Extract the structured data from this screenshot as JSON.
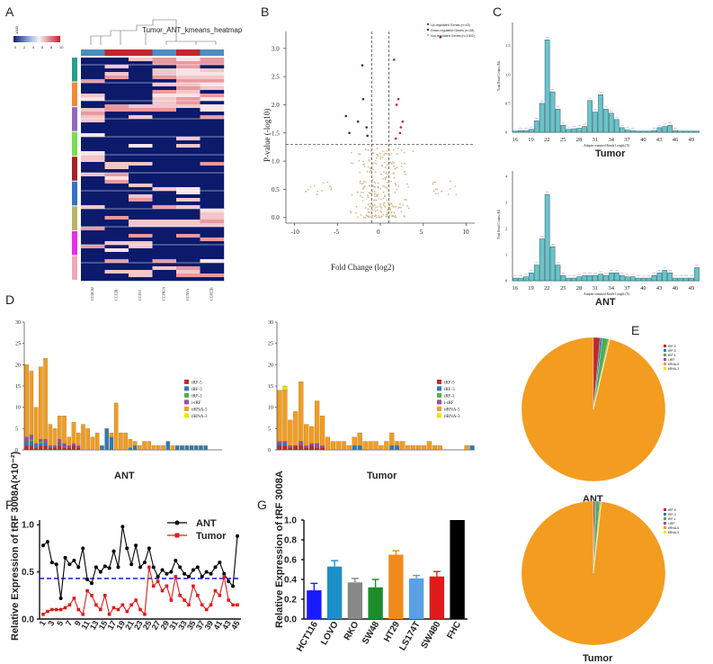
{
  "panels": [
    "A",
    "B",
    "C",
    "D",
    "E",
    "F",
    "G"
  ],
  "chart_data": [
    {
      "id": "A",
      "type": "heatmap",
      "title": "Tumor_ANT_kmeans_heatmap",
      "columns": [
        "CCDC82",
        "CCZ2B",
        "CCZ1C",
        "CCPN3A",
        "CCN3A",
        "CCPZ2B"
      ],
      "legend_ticks": [
        "0",
        "2",
        "4",
        "6",
        "8",
        "10"
      ],
      "legend_top_label": "1000"
    },
    {
      "id": "B",
      "type": "scatter",
      "xlabel": "Fold Change (log2)",
      "ylabel": "P-value (-log10)",
      "xticks": [
        -10,
        -5,
        0,
        5,
        10
      ],
      "yticks": [
        0.0,
        0.5,
        1.0,
        1.5,
        2.0,
        2.5,
        3.0
      ],
      "xlim": [
        -11,
        11
      ],
      "ylim": [
        -0.1,
        3.3
      ],
      "legend": [
        "Up-regulated Genes (n=43)",
        "Down-regulated Genes (n=38)",
        "Not-regulated Genes (n=1902)"
      ],
      "thresholds": {
        "x": [
          -1,
          1
        ],
        "y": 1.3
      },
      "up_points": [
        [
          2.1,
          2.1
        ],
        [
          1.9,
          2.0
        ],
        [
          2.4,
          1.6
        ],
        [
          2.3,
          1.5
        ],
        [
          1.8,
          1.4
        ],
        [
          1.6,
          2.8
        ],
        [
          7.0,
          3.2
        ],
        [
          2.6,
          1.7
        ]
      ],
      "down_points": [
        [
          -2.1,
          2.7
        ],
        [
          -4.0,
          1.8
        ],
        [
          -2.0,
          2.1
        ],
        [
          -1.6,
          1.6
        ],
        [
          -2.6,
          1.7
        ],
        [
          -3.6,
          1.5
        ],
        [
          -1.5,
          1.45
        ]
      ]
    },
    {
      "id": "C-Tumor",
      "type": "bar",
      "title": "Tumor",
      "xlabel": "Adapter trimmed Reads Length (N)",
      "ylabel": "Total Read Counts (M)",
      "xticks": [
        16,
        19,
        22,
        25,
        28,
        31,
        34,
        37,
        40,
        43,
        46,
        49
      ],
      "yticks": [
        "0",
        "0.5",
        "1.0",
        "1.5"
      ],
      "x": [
        16,
        17,
        18,
        19,
        20,
        21,
        22,
        23,
        24,
        25,
        26,
        27,
        28,
        29,
        30,
        31,
        32,
        33,
        34,
        35,
        36,
        37,
        38,
        39,
        40,
        41,
        42,
        43,
        44,
        45,
        46,
        47,
        48,
        49,
        50
      ],
      "values": [
        0.02,
        0.03,
        0.03,
        0.05,
        0.2,
        0.5,
        1.6,
        0.7,
        0.4,
        0.12,
        0.05,
        0.06,
        0.07,
        0.1,
        0.55,
        0.35,
        0.65,
        0.4,
        0.33,
        0.22,
        0.08,
        0.04,
        0.03,
        0.02,
        0.02,
        0.02,
        0.03,
        0.08,
        0.1,
        0.12,
        0.03,
        0.02,
        0.02,
        0.02,
        0.02
      ],
      "ylim": [
        0,
        1.9
      ]
    },
    {
      "id": "C-ANT",
      "type": "bar",
      "title": "ANT",
      "xlabel": "Adapter trimmed Reads Length (N)",
      "ylabel": "Total Read Counts (M)",
      "xticks": [
        16,
        19,
        22,
        25,
        28,
        31,
        34,
        37,
        40,
        43,
        46,
        49
      ],
      "yticks": [
        "0",
        "1",
        "2",
        "3",
        "4"
      ],
      "x": [
        16,
        17,
        18,
        19,
        20,
        21,
        22,
        23,
        24,
        25,
        26,
        27,
        28,
        29,
        30,
        31,
        32,
        33,
        34,
        35,
        36,
        37,
        38,
        39,
        40,
        41,
        42,
        43,
        44,
        45,
        46,
        47,
        48,
        49,
        50
      ],
      "values": [
        0.1,
        0.1,
        0.15,
        0.3,
        0.6,
        1.6,
        3.3,
        1.3,
        0.6,
        0.2,
        0.1,
        0.1,
        0.15,
        0.2,
        0.2,
        0.2,
        0.25,
        0.2,
        0.3,
        0.3,
        0.2,
        0.15,
        0.15,
        0.1,
        0.1,
        0.1,
        0.2,
        0.3,
        0.4,
        0.3,
        0.1,
        0.1,
        0.1,
        0.1,
        0.5
      ],
      "ylim": [
        0,
        4.2
      ]
    },
    {
      "id": "D-ANT",
      "type": "bar",
      "title": "ANT",
      "yticks": [
        0,
        5,
        10,
        15,
        20,
        25,
        30
      ],
      "ylim": [
        0,
        30
      ],
      "legend": [
        "tRF-5",
        "tRF-3",
        "tRF-1",
        "i-tRF",
        "tiRNA-5",
        "tiRNA-3"
      ],
      "series": [
        {
          "name": "tRF-5",
          "values": [
            1,
            1,
            0.5,
            1,
            1,
            0.5,
            0.5,
            1,
            0.5,
            0.5,
            1,
            0.5,
            0,
            0,
            0,
            0,
            0,
            0,
            0,
            0,
            0,
            0,
            0,
            0,
            0,
            0,
            0,
            0,
            0,
            0,
            0,
            0,
            0,
            0,
            0,
            0,
            0,
            0,
            0,
            0,
            0,
            0
          ]
        },
        {
          "name": "tRF-3",
          "values": [
            1,
            1,
            0.5,
            0.5,
            0.5,
            0,
            0,
            0.5,
            0,
            0,
            0,
            0,
            0,
            0,
            0,
            0,
            1,
            5,
            3,
            0,
            0,
            0,
            0.5,
            1,
            0,
            0,
            0,
            0,
            0,
            0,
            2,
            0,
            1,
            1,
            1,
            1,
            1,
            1,
            1,
            0,
            0,
            0,
            1,
            0
          ]
        },
        {
          "name": "tRF-1",
          "values": [
            0,
            0.5,
            0,
            0.5,
            0,
            0,
            0,
            0,
            0,
            0,
            0,
            0,
            0,
            0,
            0,
            0,
            0,
            0,
            0,
            0,
            0,
            0,
            0,
            0,
            0,
            0,
            0,
            0,
            0,
            0,
            0,
            0,
            0,
            0,
            0,
            0,
            0,
            0,
            0,
            0,
            0,
            0
          ]
        },
        {
          "name": "i-tRF",
          "values": [
            1,
            1,
            0.5,
            0.5,
            1,
            0.5,
            0.5,
            1,
            1,
            0.5,
            0.5,
            0.5,
            0,
            0,
            0,
            0,
            0,
            0,
            0,
            0,
            0,
            0,
            0,
            0,
            0,
            0,
            0,
            0,
            0,
            0,
            0,
            0,
            0,
            0,
            0,
            0,
            0,
            0,
            0,
            0,
            0,
            0
          ]
        },
        {
          "name": "tiRNA-5",
          "values": [
            17,
            15,
            8.5,
            17,
            19,
            5,
            4,
            5.5,
            6.5,
            2,
            5,
            3,
            6,
            5,
            3,
            4,
            0,
            0,
            1,
            11,
            4,
            4,
            2,
            1,
            1,
            2,
            2,
            1,
            1,
            1,
            0,
            1,
            0,
            0,
            0,
            0,
            0,
            0,
            0,
            0,
            0,
            0
          ]
        },
        {
          "name": "tiRNA-3",
          "values": [
            0,
            0,
            0,
            0,
            0,
            0,
            0,
            0,
            0,
            0,
            0,
            0,
            0,
            0,
            0,
            0,
            0,
            0,
            0,
            0,
            0,
            0,
            0,
            0,
            0,
            0,
            0,
            0,
            0,
            0,
            0,
            0,
            0,
            0,
            0,
            0,
            0,
            0,
            0,
            0,
            0,
            0
          ]
        }
      ]
    },
    {
      "id": "D-Tumor",
      "type": "bar",
      "title": "Tumor",
      "yticks": [
        0,
        5,
        10,
        15,
        20,
        25,
        30
      ],
      "ylim": [
        0,
        30
      ],
      "legend": [
        "tRF-5",
        "tRF-3",
        "tRF-1",
        "i-tRF",
        "tiRNA-5",
        "tiRNA-3"
      ],
      "series": [
        {
          "name": "tRF-5",
          "values": [
            1,
            1,
            0.5,
            1,
            1,
            0.5,
            1,
            0.5,
            0.5,
            0,
            0,
            0,
            0,
            0,
            0,
            0,
            0,
            0,
            0,
            0,
            0,
            0,
            0,
            0,
            0,
            0,
            0,
            0,
            0,
            0,
            0,
            0,
            0,
            0,
            0,
            0,
            0
          ]
        },
        {
          "name": "tRF-3",
          "values": [
            0.5,
            0.5,
            0,
            0,
            0,
            0,
            0,
            0,
            0,
            0,
            0,
            0,
            0,
            0,
            1,
            1,
            0,
            0,
            0,
            0,
            0,
            1,
            1,
            0,
            0,
            0,
            0,
            0,
            0,
            0,
            0,
            0,
            0,
            0,
            0,
            0,
            1
          ]
        },
        {
          "name": "tRF-1",
          "values": [
            0,
            0,
            0,
            0,
            0,
            0,
            0,
            0,
            0,
            0,
            0,
            0,
            0,
            0,
            0,
            0,
            0,
            0,
            0,
            0,
            0,
            0,
            0,
            0,
            0,
            0,
            0,
            0,
            0,
            0,
            0,
            0,
            0,
            0,
            0,
            0,
            0
          ]
        },
        {
          "name": "i-tRF",
          "values": [
            0.5,
            0.5,
            0.5,
            0,
            1,
            0.5,
            0.5,
            1,
            0.5,
            0,
            0,
            0,
            0,
            0,
            0,
            0,
            0,
            0,
            0,
            0,
            0,
            0,
            0,
            0,
            0,
            0,
            0,
            0,
            0,
            0,
            0,
            0,
            0,
            0,
            0,
            0,
            0
          ]
        },
        {
          "name": "tiRNA-5",
          "values": [
            12,
            12,
            6,
            8,
            14,
            5,
            4,
            10,
            7,
            3,
            2,
            2,
            2,
            1,
            2,
            3,
            2,
            2,
            2,
            1,
            2,
            3,
            1,
            2,
            1,
            1,
            1,
            1,
            2,
            1,
            1,
            0,
            0,
            0,
            0,
            1,
            0
          ]
        },
        {
          "name": "tiRNA-3",
          "values": [
            0,
            1,
            0,
            0,
            0,
            0,
            0,
            0,
            0,
            0,
            0,
            0,
            0,
            0,
            0,
            0,
            0,
            0,
            0,
            0,
            0,
            0,
            0,
            0,
            0,
            0,
            0,
            0,
            0,
            0,
            0,
            0,
            0,
            0,
            0,
            0,
            0
          ]
        }
      ]
    },
    {
      "id": "E-ANT",
      "type": "pie",
      "title": "ANT",
      "legend": [
        "tRF-5",
        "tRF-3",
        "tRF-1",
        "i-tRF",
        "tiRNA-5",
        "tiRNA-3"
      ],
      "values": [
        1.5,
        0.5,
        1.3,
        0.2,
        96.3,
        0.2
      ]
    },
    {
      "id": "E-Tumor",
      "type": "pie",
      "title": "Tumor",
      "legend": [
        "tRF-5",
        "tRF-3",
        "tRF-1",
        "i-tRF",
        "tiRNA-5",
        "tiRNA-3"
      ],
      "values": [
        0.3,
        0.3,
        0.8,
        0.2,
        98.2,
        0.2
      ]
    },
    {
      "id": "F",
      "type": "line",
      "ylabel": "Relative Expression of tRF 3008A(×10⁻²)",
      "xticks": [
        "1",
        "3",
        "5",
        "7",
        "9",
        "11",
        "13",
        "15",
        "17",
        "19",
        "21",
        "23",
        "25",
        "27",
        "29",
        "31",
        "33",
        "35",
        "37",
        "39",
        "41",
        "43",
        "45"
      ],
      "yticks": [
        "0.0",
        "0.5",
        "1.0"
      ],
      "ylim": [
        0,
        1.05
      ],
      "legend": [
        "ANT",
        "Tumor"
      ],
      "series": [
        {
          "name": "ANT",
          "values": [
            0.78,
            0.82,
            0.6,
            0.58,
            0.22,
            0.65,
            0.58,
            0.62,
            0.55,
            0.75,
            0.42,
            0.38,
            0.55,
            0.5,
            0.56,
            0.54,
            0.72,
            0.55,
            0.98,
            0.75,
            0.58,
            0.78,
            0.55,
            0.6,
            0.75,
            0.55,
            0.45,
            0.52,
            0.48,
            0.5,
            0.62,
            0.55,
            0.48,
            0.45,
            0.52,
            0.55,
            0.45,
            0.5,
            0.48,
            0.55,
            0.6,
            0.48,
            0.4,
            0.35,
            0.88
          ]
        },
        {
          "name": "Tumor",
          "values": [
            0.05,
            0.08,
            0.1,
            0.1,
            0.1,
            0.12,
            0.15,
            0.22,
            0.1,
            0.05,
            0.3,
            0.25,
            0.15,
            0.1,
            0.25,
            0.05,
            0.12,
            0.1,
            0.15,
            0.08,
            0.15,
            0.2,
            0.1,
            0.05,
            0.55,
            0.35,
            0.4,
            0.3,
            0.35,
            0.2,
            0.45,
            0.25,
            0.2,
            0.15,
            0.35,
            0.25,
            0.15,
            0.1,
            0.15,
            0.3,
            0.25,
            0.45,
            0.2,
            0.15,
            0.15
          ]
        }
      ],
      "reference_line": 0.43
    },
    {
      "id": "G",
      "type": "bar",
      "ylabel": "Relative Expression of tRF 3008A",
      "yticks": [
        "0.0",
        "0.2",
        "0.4",
        "0.6",
        "0.8",
        "1.0"
      ],
      "ylim": [
        0,
        1.0
      ],
      "categories": [
        "HCT116",
        "LOVO",
        "RKO",
        "SW48",
        "HT29",
        "LS174T",
        "SW480",
        "FHC"
      ],
      "values": [
        0.29,
        0.53,
        0.37,
        0.32,
        0.65,
        0.41,
        0.43,
        1.0
      ],
      "errors": [
        0.07,
        0.06,
        0.04,
        0.08,
        0.04,
        0.03,
        0.05,
        0
      ],
      "colors": [
        "#1a1aff",
        "#1c8fc8",
        "#888888",
        "#1a8c2a",
        "#f08a1c",
        "#5aa0e6",
        "#e01b1b",
        "#000000"
      ]
    }
  ],
  "colors": {
    "tRF-5": "#c0272d",
    "tRF-3": "#2c7bb6",
    "tRF-1": "#4daf4a",
    "i-tRF": "#984ea3",
    "tiRNA-5": "#f39c1f",
    "tiRNA-3": "#e6e600"
  }
}
